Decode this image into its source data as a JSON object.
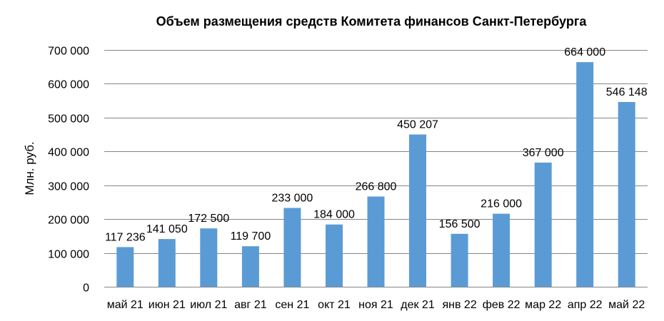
{
  "chart_data": {
    "type": "bar",
    "title": "Объем размещения  средств Комитета финансов Санкт-Петербурга",
    "xlabel": "",
    "ylabel": "Млн. руб.",
    "categories": [
      "май 21",
      "июн 21",
      "июл 21",
      "авг 21",
      "сен 21",
      "окт 21",
      "ноя 21",
      "дек 21",
      "янв 22",
      "фев 22",
      "мар 22",
      "апр 22",
      "май 22"
    ],
    "values": [
      117236,
      141050,
      172500,
      119700,
      233000,
      184000,
      266800,
      450207,
      156500,
      216000,
      367000,
      664000,
      546148
    ],
    "value_labels": [
      "117 236",
      "141 050",
      "172 500",
      "119 700",
      "233 000",
      "184 000",
      "266 800",
      "450 207",
      "156 500",
      "216 000",
      "367 000",
      "664 000",
      "546 148"
    ],
    "yticks": [
      0,
      100000,
      200000,
      300000,
      400000,
      500000,
      600000,
      700000
    ],
    "ytick_labels": [
      "0",
      "100 000",
      "200 000",
      "300 000",
      "400 000",
      "500 000",
      "600 000",
      "700 000"
    ],
    "ylim": [
      0,
      700000
    ],
    "grid": true,
    "legend": "none",
    "bar_color": "#5b9bd5"
  }
}
